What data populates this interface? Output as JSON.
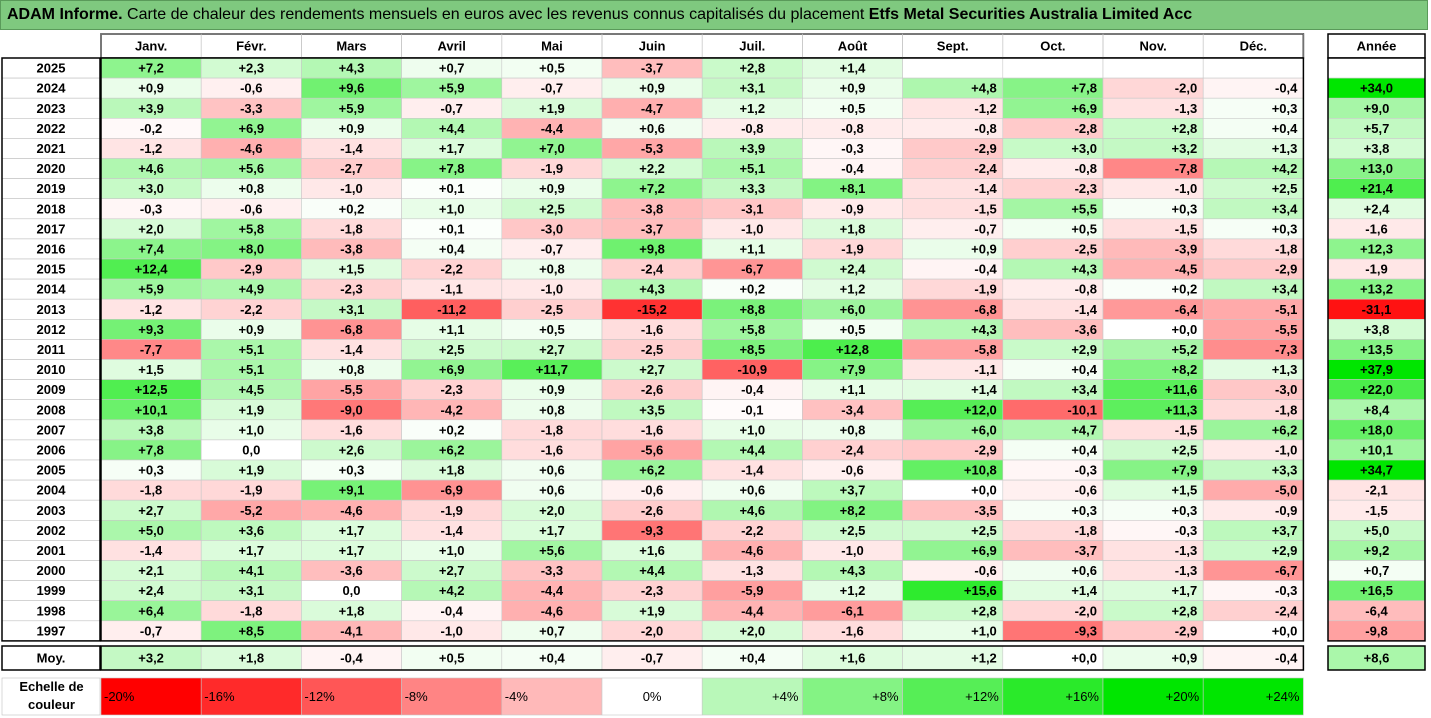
{
  "title": {
    "bold": "ADAM Informe.",
    "rest": " Carte de chaleur des rendements mensuels en euros avec les revenus connus capitalisés du placement ",
    "fund": "Etfs Metal Securities Australia Limited Acc"
  },
  "chart_data": {
    "type": "heatmap",
    "columns": [
      "Janv.",
      "Févr.",
      "Mars",
      "Avril",
      "Mai",
      "Juin",
      "Juil.",
      "Août",
      "Sept.",
      "Oct.",
      "Nov.",
      "Déc."
    ],
    "year_header": "Année",
    "rows": [
      {
        "year": "2025",
        "values": [
          "+7,2",
          "+2,3",
          "+4,3",
          "+0,7",
          "+0,5",
          "-3,7",
          "+2,8",
          "+1,4",
          "",
          "",
          "",
          ""
        ],
        "annual": ""
      },
      {
        "year": "2024",
        "values": [
          "+0,9",
          "-0,6",
          "+9,6",
          "+5,9",
          "-0,7",
          "+0,9",
          "+3,1",
          "+0,9",
          "+4,8",
          "+7,8",
          "-2,0",
          "-0,4"
        ],
        "annual": "+34,0"
      },
      {
        "year": "2023",
        "values": [
          "+3,9",
          "-3,3",
          "+5,9",
          "-0,7",
          "+1,9",
          "-4,7",
          "+1,2",
          "+0,5",
          "-1,2",
          "+6,9",
          "-1,3",
          "+0,3"
        ],
        "annual": "+9,0"
      },
      {
        "year": "2022",
        "values": [
          "-0,2",
          "+6,9",
          "+0,9",
          "+4,4",
          "-4,4",
          "+0,6",
          "-0,8",
          "-0,8",
          "-0,8",
          "-2,8",
          "+2,8",
          "+0,4"
        ],
        "annual": "+5,7"
      },
      {
        "year": "2021",
        "values": [
          "-1,2",
          "-4,6",
          "-1,4",
          "+1,7",
          "+7,0",
          "-5,3",
          "+3,9",
          "-0,3",
          "-2,9",
          "+3,0",
          "+3,2",
          "+1,3"
        ],
        "annual": "+3,8"
      },
      {
        "year": "2020",
        "values": [
          "+4,6",
          "+5,6",
          "-2,7",
          "+7,8",
          "-1,9",
          "+2,2",
          "+5,1",
          "-0,4",
          "-2,4",
          "-0,8",
          "-7,8",
          "+4,2"
        ],
        "annual": "+13,0"
      },
      {
        "year": "2019",
        "values": [
          "+3,0",
          "+0,8",
          "-1,0",
          "+0,1",
          "+0,9",
          "+7,2",
          "+3,3",
          "+8,1",
          "-1,4",
          "-2,3",
          "-1,0",
          "+2,5"
        ],
        "annual": "+21,4"
      },
      {
        "year": "2018",
        "values": [
          "-0,3",
          "-0,6",
          "+0,2",
          "+1,0",
          "+2,5",
          "-3,8",
          "-3,1",
          "-0,9",
          "-1,5",
          "+5,5",
          "+0,3",
          "+3,4"
        ],
        "annual": "+2,4"
      },
      {
        "year": "2017",
        "values": [
          "+2,0",
          "+5,8",
          "-1,8",
          "+0,1",
          "-3,0",
          "-3,7",
          "-1,0",
          "+1,8",
          "-0,7",
          "+0,5",
          "-1,5",
          "+0,3"
        ],
        "annual": "-1,6"
      },
      {
        "year": "2016",
        "values": [
          "+7,4",
          "+8,0",
          "-3,8",
          "+0,4",
          "-0,7",
          "+9,8",
          "+1,1",
          "-1,9",
          "+0,9",
          "-2,5",
          "-3,9",
          "-1,8"
        ],
        "annual": "+12,3"
      },
      {
        "year": "2015",
        "values": [
          "+12,4",
          "-2,9",
          "+1,5",
          "-2,2",
          "+0,8",
          "-2,4",
          "-6,7",
          "+2,4",
          "-0,4",
          "+4,3",
          "-4,5",
          "-2,9"
        ],
        "annual": "-1,9"
      },
      {
        "year": "2014",
        "values": [
          "+5,9",
          "+4,9",
          "-2,3",
          "-1,1",
          "-1,0",
          "+4,3",
          "+0,2",
          "+1,2",
          "-1,9",
          "-0,8",
          "+0,2",
          "+3,4"
        ],
        "annual": "+13,2"
      },
      {
        "year": "2013",
        "values": [
          "-1,2",
          "-2,2",
          "+3,1",
          "-11,2",
          "-2,5",
          "-15,2",
          "+8,8",
          "+6,0",
          "-6,8",
          "-1,4",
          "-6,4",
          "-5,1"
        ],
        "annual": "-31,1"
      },
      {
        "year": "2012",
        "values": [
          "+9,3",
          "+0,9",
          "-6,8",
          "+1,1",
          "+0,5",
          "-1,6",
          "+5,8",
          "+0,5",
          "+4,3",
          "-3,6",
          "+0,0",
          "-5,5"
        ],
        "annual": "+3,8"
      },
      {
        "year": "2011",
        "values": [
          "-7,7",
          "+5,1",
          "-1,4",
          "+2,5",
          "+2,7",
          "-2,5",
          "+8,5",
          "+12,8",
          "-5,8",
          "+2,9",
          "+5,2",
          "-7,3"
        ],
        "annual": "+13,5"
      },
      {
        "year": "2010",
        "values": [
          "+1,5",
          "+5,1",
          "+0,8",
          "+6,9",
          "+11,7",
          "+2,7",
          "-10,9",
          "+7,9",
          "-1,1",
          "+0,4",
          "+8,2",
          "+1,3"
        ],
        "annual": "+37,9"
      },
      {
        "year": "2009",
        "values": [
          "+12,5",
          "+4,5",
          "-5,5",
          "-2,3",
          "+0,9",
          "-2,6",
          "-0,4",
          "+1,1",
          "+1,4",
          "+3,4",
          "+11,6",
          "-3,0"
        ],
        "annual": "+22,0"
      },
      {
        "year": "2008",
        "values": [
          "+10,1",
          "+1,9",
          "-9,0",
          "-4,2",
          "+0,8",
          "+3,5",
          "-0,1",
          "-3,4",
          "+12,0",
          "-10,1",
          "+11,3",
          "-1,8"
        ],
        "annual": "+8,4"
      },
      {
        "year": "2007",
        "values": [
          "+3,8",
          "+1,0",
          "-1,6",
          "+0,2",
          "-1,8",
          "-1,6",
          "+1,0",
          "+0,8",
          "+6,0",
          "+4,7",
          "-1,5",
          "+6,2"
        ],
        "annual": "+18,0"
      },
      {
        "year": "2006",
        "values": [
          "+7,8",
          "0,0",
          "+2,6",
          "+6,2",
          "-1,6",
          "-5,6",
          "+4,4",
          "-2,4",
          "-2,9",
          "+0,4",
          "+2,5",
          "-1,0"
        ],
        "annual": "+10,1"
      },
      {
        "year": "2005",
        "values": [
          "+0,3",
          "+1,9",
          "+0,3",
          "+1,8",
          "+0,6",
          "+6,2",
          "-1,4",
          "-0,6",
          "+10,8",
          "-0,3",
          "+7,9",
          "+3,3"
        ],
        "annual": "+34,7"
      },
      {
        "year": "2004",
        "values": [
          "-1,8",
          "-1,9",
          "+9,1",
          "-6,9",
          "+0,6",
          "-0,6",
          "+0,6",
          "+3,7",
          "+0,0",
          "-0,6",
          "+1,5",
          "-5,0"
        ],
        "annual": "-2,1"
      },
      {
        "year": "2003",
        "values": [
          "+2,7",
          "-5,2",
          "-4,6",
          "-1,9",
          "+2,0",
          "-2,6",
          "+4,6",
          "+8,2",
          "-3,5",
          "+0,3",
          "+0,3",
          "-0,9"
        ],
        "annual": "-1,5"
      },
      {
        "year": "2002",
        "values": [
          "+5,0",
          "+3,6",
          "+1,7",
          "-1,4",
          "+1,7",
          "-9,3",
          "-2,2",
          "+2,5",
          "+2,5",
          "-1,8",
          "-0,3",
          "+3,7"
        ],
        "annual": "+5,0"
      },
      {
        "year": "2001",
        "values": [
          "-1,4",
          "+1,7",
          "+1,7",
          "+1,0",
          "+5,6",
          "+1,6",
          "-4,6",
          "-1,0",
          "+6,9",
          "-3,7",
          "-1,3",
          "+2,9"
        ],
        "annual": "+9,2"
      },
      {
        "year": "2000",
        "values": [
          "+2,1",
          "+4,1",
          "-3,6",
          "+2,7",
          "-3,3",
          "+4,4",
          "-1,3",
          "+4,3",
          "-0,6",
          "+0,6",
          "-1,3",
          "-6,7"
        ],
        "annual": "+0,7"
      },
      {
        "year": "1999",
        "values": [
          "+2,4",
          "+3,1",
          "0,0",
          "+4,2",
          "-4,4",
          "-2,3",
          "-5,9",
          "+1,2",
          "+15,6",
          "+1,4",
          "+1,7",
          "-0,3"
        ],
        "annual": "+16,5"
      },
      {
        "year": "1998",
        "values": [
          "+6,4",
          "-1,8",
          "+1,8",
          "-0,4",
          "-4,6",
          "+1,9",
          "-4,4",
          "-6,1",
          "+2,8",
          "-2,0",
          "+2,8",
          "-2,4"
        ],
        "annual": "-6,4"
      },
      {
        "year": "1997",
        "values": [
          "-0,7",
          "+8,5",
          "-4,1",
          "-1,0",
          "+0,7",
          "-2,0",
          "+2,0",
          "-1,6",
          "+1,0",
          "-9,3",
          "-2,9",
          "+0,0"
        ],
        "annual": "-9,8"
      }
    ],
    "average": {
      "label": "Moy.",
      "values": [
        "+3,2",
        "+1,8",
        "-0,4",
        "+0,5",
        "+0,4",
        "-0,7",
        "+0,4",
        "+1,6",
        "+1,2",
        "+0,0",
        "+0,9",
        "-0,4"
      ],
      "annual": "+8,6"
    },
    "scale": {
      "label_line1": "Echelle de",
      "label_line2": "couleur",
      "stops": [
        "-20%",
        "-16%",
        "-12%",
        "-8%",
        "-4%",
        "0%",
        "+4%",
        "+8%",
        "+12%",
        "+16%",
        "+20%",
        "+24%"
      ],
      "stop_values": [
        -20,
        -16,
        -12,
        -8,
        -4,
        0,
        4,
        8,
        12,
        16,
        20,
        24
      ]
    },
    "colors": {
      "negative": "#ff0000",
      "neutral": "#ffffff",
      "positive": "#00e600",
      "title_bg": "#7fc97f"
    }
  }
}
